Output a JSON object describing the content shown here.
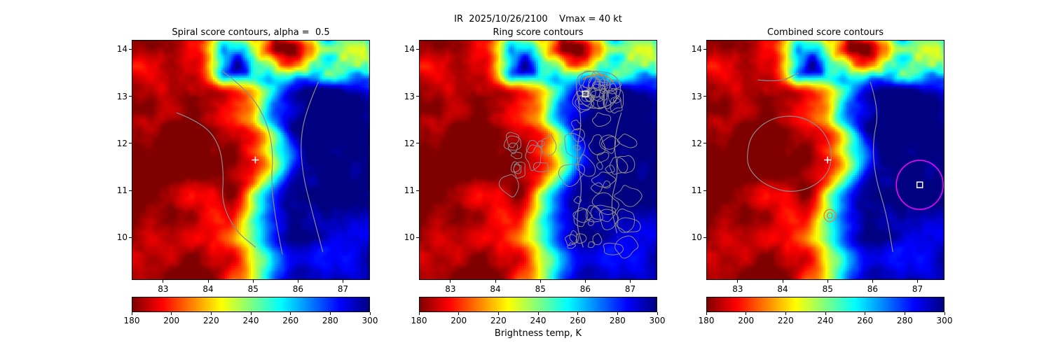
{
  "figure": {
    "suptitle": "IR  2025/10/26/2100    Vmax = 40 kt",
    "background": "#ffffff"
  },
  "chart_data": {
    "type": "heatmap",
    "colormap": "jet_reversed",
    "field_summary": "Tropical-cyclone IR brightness-temperature image (same field in all three panels): cold convective cloud tops ~185 K (dark red) covering the west half, curved warm front near 85.0-85.5 deg E, warm clear air ~295 K (dark blue) to the east, broken convective debris along the northern edge with a cold blob near 85.8E/14.0N",
    "axes": {
      "xlim": [
        82.3,
        87.6
      ],
      "ylim": [
        9.1,
        14.2
      ],
      "x_ticks": [
        83,
        84,
        85,
        86,
        87
      ],
      "y_ticks": [
        10,
        11,
        12,
        13,
        14
      ]
    },
    "colorbar": {
      "label": "Brightness temp, K",
      "vmin": 180,
      "vmax": 300,
      "ticks": [
        180,
        200,
        220,
        240,
        260,
        280,
        300
      ]
    },
    "style": {
      "contour_gray": "#8c8c8c",
      "contour_orange": "#ff7f0e",
      "marker_color": "#ffffff",
      "circle_magenta": "#ff00ff"
    },
    "panels": [
      {
        "title": "Spiral score contours, alpha =  0.5",
        "contours": {
          "polylines": [
            [
              [
                84.3,
                13.55
              ],
              [
                84.85,
                13.15
              ],
              [
                85.25,
                12.6
              ],
              [
                85.45,
                11.9
              ],
              [
                85.4,
                11.15
              ],
              [
                85.5,
                10.4
              ],
              [
                85.65,
                9.65
              ]
            ],
            [
              [
                83.3,
                12.65
              ],
              [
                83.85,
                12.45
              ],
              [
                84.25,
                12.0
              ],
              [
                84.35,
                11.35
              ],
              [
                84.3,
                10.75
              ],
              [
                84.6,
                10.15
              ],
              [
                85.05,
                9.8
              ]
            ],
            [
              [
                86.45,
                13.3
              ],
              [
                86.2,
                12.75
              ],
              [
                86.05,
                12.1
              ],
              [
                86.1,
                11.35
              ],
              [
                86.3,
                10.6
              ],
              [
                86.55,
                9.7
              ]
            ]
          ]
        },
        "markers": [
          {
            "type": "plus",
            "x": 85.05,
            "y": 11.65
          }
        ]
      },
      {
        "title": "Ring score contours",
        "contours": {
          "polylines": [
            [
              [
                85.8,
                13.1
              ],
              [
                85.95,
                12.5
              ],
              [
                85.78,
                11.8
              ],
              [
                85.95,
                11.05
              ],
              [
                85.78,
                10.35
              ],
              [
                85.95,
                9.8
              ]
            ],
            [
              [
                86.8,
                12.65
              ],
              [
                86.6,
                12.05
              ],
              [
                86.75,
                11.4
              ],
              [
                86.55,
                10.75
              ],
              [
                86.7,
                10.1
              ]
            ]
          ],
          "closed_loops": [
            [
              [
                85.85,
                13.5
              ],
              [
                86.3,
                13.55
              ],
              [
                86.7,
                13.45
              ],
              [
                86.82,
                13.1
              ],
              [
                86.6,
                12.82
              ],
              [
                86.2,
                12.72
              ],
              [
                85.9,
                12.85
              ],
              [
                85.78,
                13.2
              ]
            ]
          ],
          "orange_polylines": [
            [
              [
                85.95,
                13.36
              ],
              [
                86.2,
                13.5
              ],
              [
                86.5,
                13.44
              ],
              [
                86.62,
                13.3
              ]
            ]
          ],
          "blob_clusters": [
            {
              "cx": 84.75,
              "cy": 11.6,
              "sx": 0.45,
              "sy": 0.55,
              "count": 13,
              "rmin": 0.05,
              "rmax": 0.22,
              "seed": 7
            },
            {
              "cx": 86.35,
              "cy": 11.2,
              "sx": 0.7,
              "sy": 1.45,
              "count": 38,
              "rmin": 0.05,
              "rmax": 0.3,
              "seed": 21
            },
            {
              "cx": 86.3,
              "cy": 13.1,
              "sx": 0.4,
              "sy": 0.26,
              "count": 26,
              "rmin": 0.04,
              "rmax": 0.22,
              "seed": 33
            }
          ]
        },
        "markers": [
          {
            "type": "square",
            "x": 86.0,
            "y": 13.05
          }
        ]
      },
      {
        "title": "Combined score contours",
        "contours": {
          "polylines": [
            [
              [
                85.95,
                13.3
              ],
              [
                86.15,
                12.7
              ],
              [
                86.0,
                12.05
              ],
              [
                86.05,
                11.3
              ],
              [
                86.3,
                10.55
              ],
              [
                86.45,
                9.7
              ]
            ],
            [
              [
                83.45,
                13.35
              ],
              [
                83.95,
                13.3
              ],
              [
                84.35,
                13.5
              ]
            ]
          ],
          "closed_loops": [
            [
              [
                83.2,
                11.75
              ],
              [
                83.3,
                12.2
              ],
              [
                83.75,
                12.55
              ],
              [
                84.35,
                12.6
              ],
              [
                84.85,
                12.35
              ],
              [
                85.1,
                11.9
              ],
              [
                85.05,
                11.4
              ],
              [
                84.65,
                11.05
              ],
              [
                84.1,
                10.95
              ],
              [
                83.55,
                11.15
              ],
              [
                83.25,
                11.45
              ]
            ]
          ],
          "orange_rings": [
            {
              "x": 85.05,
              "y": 10.47,
              "r": 0.13
            },
            {
              "x": 85.05,
              "y": 10.47,
              "r": 0.06
            }
          ]
        },
        "markers": [
          {
            "type": "plus",
            "x": 85.0,
            "y": 11.65
          },
          {
            "type": "square",
            "x": 87.05,
            "y": 11.12
          }
        ],
        "search_circle": {
          "x": 87.05,
          "y": 11.12,
          "r": 0.52
        }
      }
    ]
  }
}
